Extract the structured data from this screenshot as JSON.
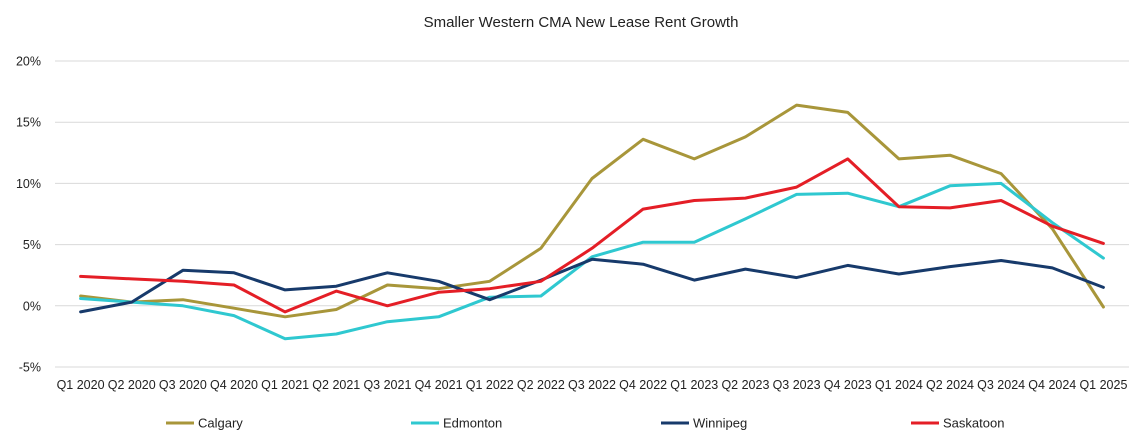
{
  "chart_data": {
    "type": "line",
    "title": "Smaller Western CMA New Lease Rent Growth",
    "xlabel": "",
    "ylabel": "",
    "categories": [
      "Q1 2020",
      "Q2 2020",
      "Q3 2020",
      "Q4 2020",
      "Q1 2021",
      "Q2 2021",
      "Q3 2021",
      "Q4 2021",
      "Q1 2022",
      "Q2 2022",
      "Q3 2022",
      "Q4 2022",
      "Q1 2023",
      "Q2 2023",
      "Q3 2023",
      "Q4 2023",
      "Q1 2024",
      "Q2 2024",
      "Q3 2024",
      "Q4 2024",
      "Q1 2025"
    ],
    "ylim": [
      -5,
      20
    ],
    "yticks": [
      -5,
      0,
      5,
      10,
      15,
      20
    ],
    "ytick_labels": [
      "-5%",
      "0%",
      "5%",
      "10%",
      "15%",
      "20%"
    ],
    "grid": true,
    "legend": "bottom",
    "series": [
      {
        "name": "Calgary",
        "color": "#A8963A",
        "values": [
          0.8,
          0.3,
          0.5,
          -0.2,
          -0.9,
          -0.3,
          1.7,
          1.4,
          2.0,
          4.7,
          10.4,
          13.6,
          12.0,
          13.8,
          16.4,
          15.8,
          12.0,
          12.3,
          10.8,
          6.3,
          -0.1
        ]
      },
      {
        "name": "Edmonton",
        "color": "#2FC8D0",
        "values": [
          0.6,
          0.3,
          0.0,
          -0.8,
          -2.7,
          -2.3,
          -1.3,
          -0.9,
          0.7,
          0.8,
          4.0,
          5.2,
          5.2,
          7.1,
          9.1,
          9.2,
          8.1,
          9.8,
          10.0,
          6.8,
          3.9
        ]
      },
      {
        "name": "Winnipeg",
        "color": "#173A6B",
        "values": [
          -0.5,
          0.3,
          2.9,
          2.7,
          1.3,
          1.6,
          2.7,
          2.0,
          0.5,
          2.1,
          3.8,
          3.4,
          2.1,
          3.0,
          2.3,
          3.3,
          2.6,
          3.2,
          3.7,
          3.1,
          1.5
        ]
      },
      {
        "name": "Saskatoon",
        "color": "#E41E26",
        "values": [
          2.4,
          2.2,
          2.0,
          1.7,
          -0.5,
          1.2,
          0.0,
          1.1,
          1.4,
          2.0,
          4.7,
          7.9,
          8.6,
          8.8,
          9.7,
          12.0,
          8.1,
          8.0,
          8.6,
          6.5,
          5.1
        ]
      }
    ]
  }
}
